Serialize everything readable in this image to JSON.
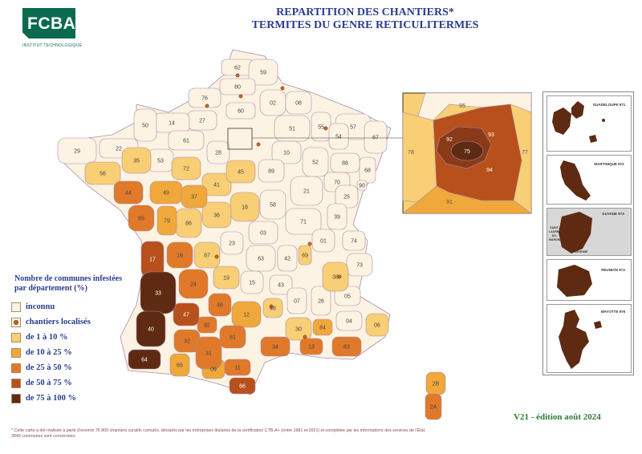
{
  "header": {
    "logo_text": "FCBA",
    "logo_subtitle": "INSTITUT TECHNOLOGIQUE",
    "title_line1": "REPARTITION DES CHANTIERS*",
    "title_line2": "TERMITES DU GENRE RETICULITERMES"
  },
  "legend": {
    "title_line1": "Nombre de communes infestées",
    "title_line2": "par département  (%)",
    "items": [
      {
        "label": "inconnu",
        "color": "#fdf3e3"
      },
      {
        "label": "chantiers localisés",
        "color": "#fdf3e3",
        "marker": "dot"
      },
      {
        "label": "de 1 à 10 %",
        "color": "#f8cf74"
      },
      {
        "label": "de 10 à 25 %",
        "color": "#f0a83a"
      },
      {
        "label": "de 25 à 50 %",
        "color": "#e0792a"
      },
      {
        "label": "de 50 à 75 %",
        "color": "#b8501c"
      },
      {
        "label": "de 75 à 100 %",
        "color": "#5e2a12"
      }
    ]
  },
  "colors": {
    "inconnu": "#fdf3e3",
    "c1": "#f8cf74",
    "c2": "#f0a83a",
    "c3": "#e0792a",
    "c4": "#b8501c",
    "c5": "#5e2a12",
    "border": "#a98ca8",
    "title": "#2b3d8c"
  },
  "departments": {
    "inconnu": [
      "62",
      "59",
      "80",
      "76",
      "02",
      "08",
      "60",
      "27",
      "14",
      "50",
      "61",
      "28",
      "51",
      "55",
      "57",
      "54",
      "67",
      "68",
      "10",
      "52",
      "88",
      "89",
      "21",
      "70",
      "25",
      "39",
      "90",
      "71",
      "58",
      "03",
      "42",
      "63",
      "23",
      "15",
      "43",
      "07",
      "26",
      "05",
      "04",
      "22",
      "29",
      "53",
      "01",
      "74",
      "73"
    ],
    "c1": [
      "35",
      "56",
      "72",
      "41",
      "45",
      "18",
      "36",
      "86",
      "87",
      "19",
      "48",
      "38",
      "69",
      "06",
      "30",
      "28_"
    ],
    "c2": [
      "49",
      "37",
      "79",
      "12",
      "65",
      "09",
      "84",
      "2B"
    ],
    "c3": [
      "44",
      "85",
      "16",
      "24",
      "46",
      "81",
      "32",
      "31",
      "82",
      "34",
      "13",
      "83",
      "11",
      "2A"
    ],
    "c4": [
      "17",
      "47",
      "66",
      "91",
      "93",
      "94"
    ],
    "c5": [
      "33",
      "40",
      "64",
      "75"
    ]
  },
  "idf_inset": {
    "labels": [
      "95",
      "78",
      "77",
      "92",
      "75",
      "93",
      "94",
      "91"
    ]
  },
  "overseas": {
    "panels": [
      "GUADELOUPE 971",
      "MARTINIQUE 972",
      "GUYANE 973",
      "REUNION 974",
      "MAYOTTE 976"
    ],
    "guyane_extra": [
      "SAINT-LAURENT-DU-MARONI",
      "CAYENNE"
    ]
  },
  "edition": "V21  -  édition août 2024",
  "footnote_line1": "* Cette carte a été réalisée à partir d'environ 76 800 chantiers curatifs cumulés, déclarés par les entreprises titulaires de la certification CTB-A+ (entre 1981 et 2021) et complétée par les informations des services de l'Etat.",
  "footnote_line2": "3849 communes sont concernées."
}
